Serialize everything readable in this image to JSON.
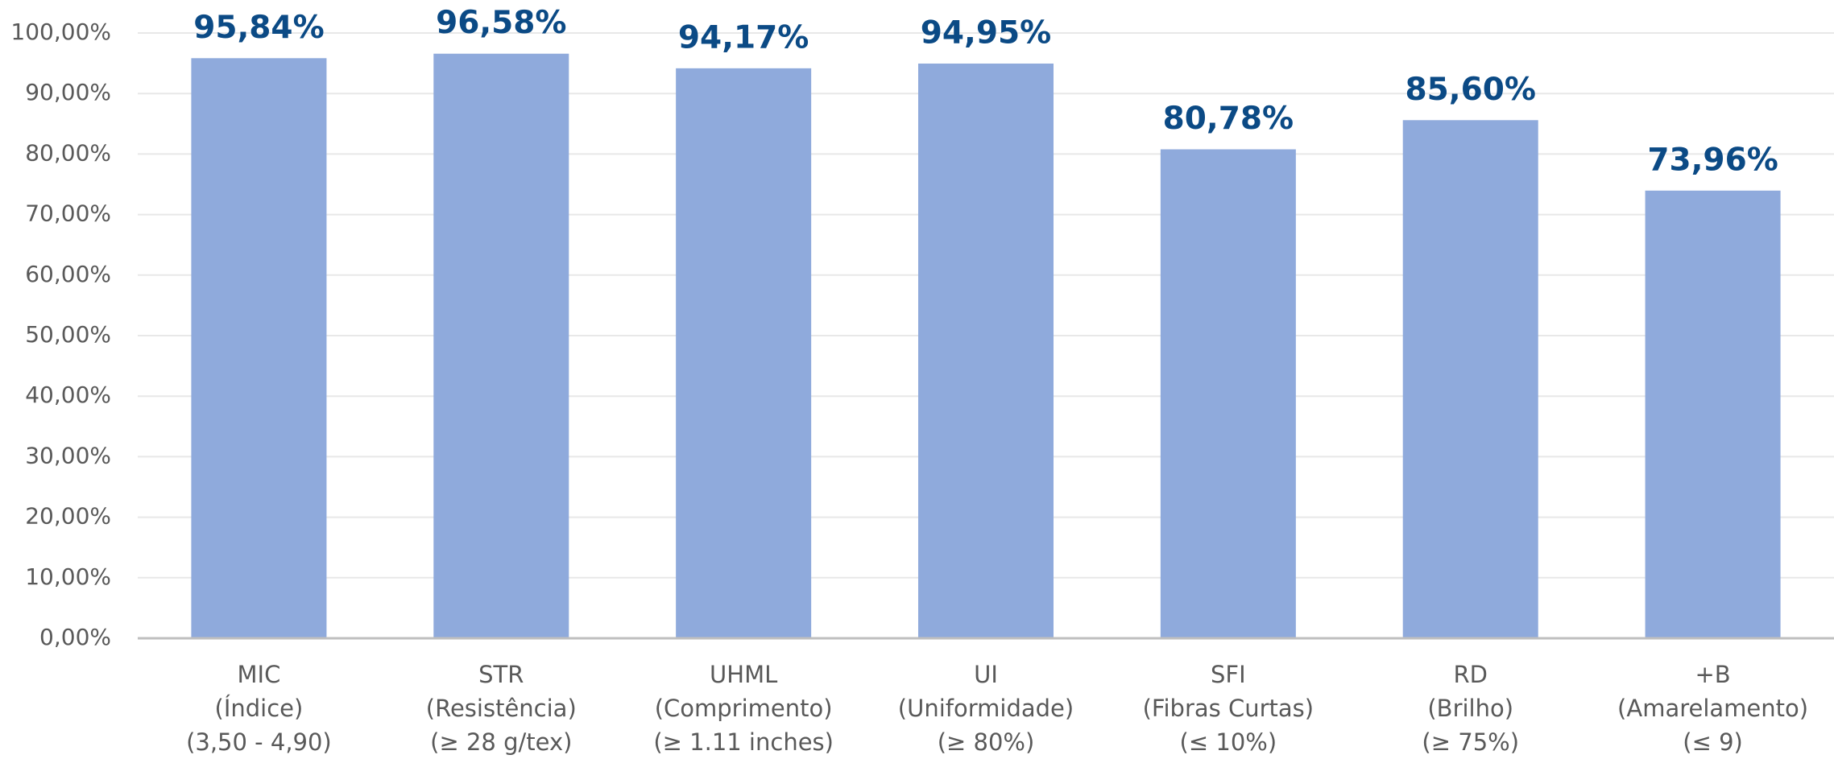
{
  "chart_data": {
    "type": "bar",
    "categories": [
      [
        "MIC",
        "(Índice)",
        "(3,50 - 4,90)"
      ],
      [
        "STR",
        "(Resistência)",
        "(≥ 28 g/tex)"
      ],
      [
        "UHML",
        "(Comprimento)",
        "(≥ 1.11 inches)"
      ],
      [
        "UI",
        "(Uniformidade)",
        "(≥ 80%)"
      ],
      [
        "SFI",
        "(Fibras Curtas)",
        "(≤ 10%)"
      ],
      [
        "RD",
        "(Brilho)",
        "(≥ 75%)"
      ],
      [
        "+B",
        "(Amarelamento)",
        "(≤ 9)"
      ]
    ],
    "values": [
      95.84,
      96.58,
      94.17,
      94.95,
      80.78,
      85.6,
      73.96
    ],
    "value_labels": [
      "95,84%",
      "96,58%",
      "94,17%",
      "94,95%",
      "80,78%",
      "85,60%",
      "73,96%"
    ],
    "color": "#8faadc",
    "label_color": "#0b4a85",
    "ylim": [
      0,
      100
    ],
    "yticks": [
      {
        "value": 0,
        "label": "0,00%"
      },
      {
        "value": 10,
        "label": "10,00%"
      },
      {
        "value": 20,
        "label": "20,00%"
      },
      {
        "value": 30,
        "label": "30,00%"
      },
      {
        "value": 40,
        "label": "40,00%"
      },
      {
        "value": 50,
        "label": "50,00%"
      },
      {
        "value": 60,
        "label": "60,00%"
      },
      {
        "value": 70,
        "label": "70,00%"
      },
      {
        "value": 80,
        "label": "80,00%"
      },
      {
        "value": 90,
        "label": "90,00%"
      },
      {
        "value": 100,
        "label": "100,00%"
      }
    ],
    "grid": true
  }
}
